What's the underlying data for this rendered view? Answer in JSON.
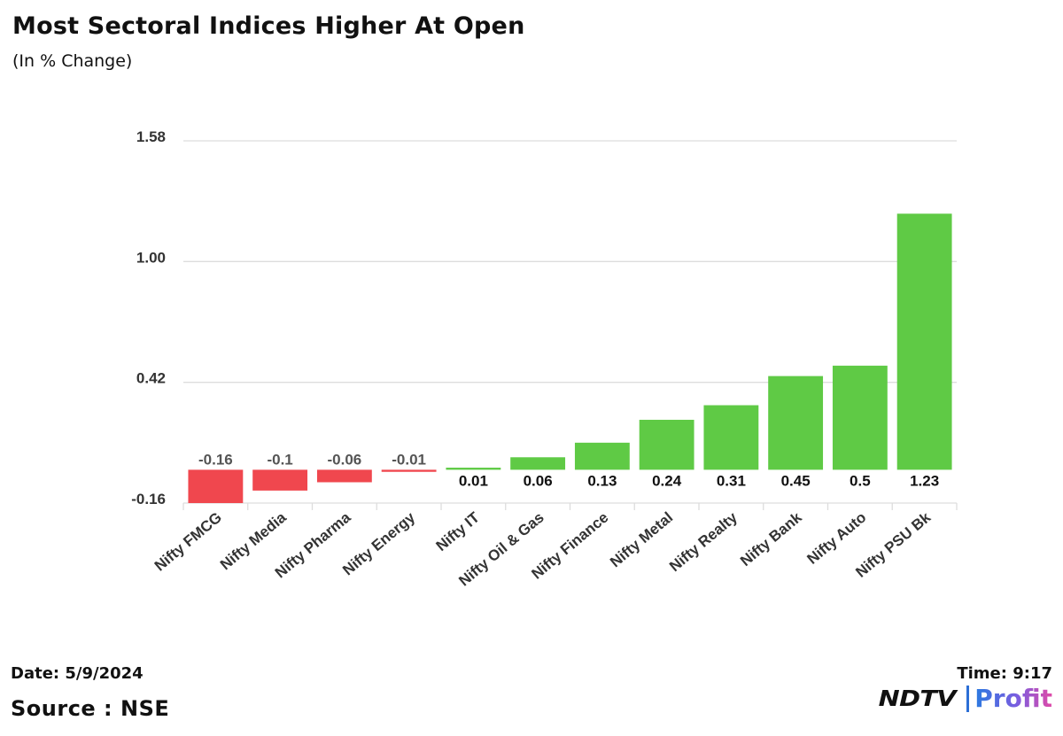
{
  "title": "Most Sectoral Indices Higher At Open",
  "subtitle": "(In % Change)",
  "footer": {
    "date": "Date: 5/9/2024",
    "source": "Source : NSE",
    "time": "Time: 9:17",
    "logo_ndtv": "NDTV",
    "logo_profit": "Profit"
  },
  "colors": {
    "positive": "#5fca45",
    "negative": "#f0474e",
    "grid": "#dddddd",
    "text": "#333333"
  },
  "chart_data": {
    "type": "bar",
    "title": "Most Sectoral Indices Higher At Open",
    "ylabel": "(In % Change)",
    "xlabel": "",
    "categories": [
      "Nifty FMCG",
      "Nifty Media",
      "Nifty Pharma",
      "Nifty Energy",
      "Nifty IT",
      "Nifty Oil & Gas",
      "Nifty Finance",
      "Nifty Metal",
      "Nifty Realty",
      "Nifty Bank",
      "Nifty Auto",
      "Nifty PSU Bk"
    ],
    "values": [
      -0.16,
      -0.1,
      -0.06,
      -0.01,
      0.01,
      0.06,
      0.13,
      0.24,
      0.31,
      0.45,
      0.5,
      1.23
    ],
    "value_labels": [
      "-0.16",
      "-0.1",
      "-0.06",
      "-0.01",
      "0.01",
      "0.06",
      "0.13",
      "0.24",
      "0.31",
      "0.45",
      "0.5",
      "1.23"
    ],
    "yticks": [
      -0.16,
      0.42,
      1.0,
      1.58
    ],
    "ytick_labels": [
      "-0.16",
      "0.42",
      "1.00",
      "1.58"
    ],
    "ylim": [
      -0.16,
      1.58
    ],
    "grid": true,
    "legend": "none"
  }
}
